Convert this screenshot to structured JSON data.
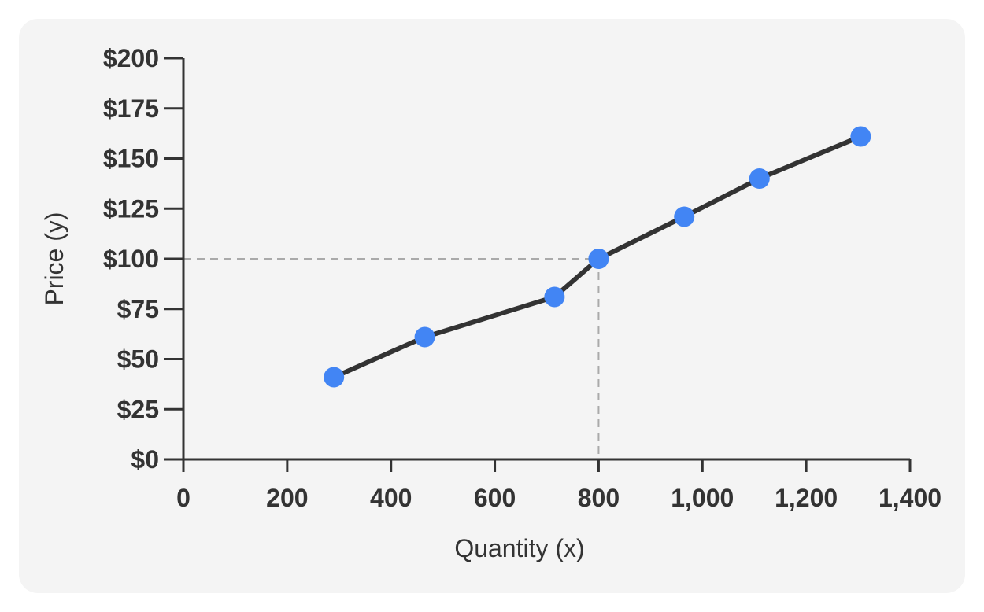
{
  "chart_data": {
    "type": "line",
    "xlabel": "Quantity (x)",
    "ylabel": "Price (y)",
    "xlim": [
      0,
      1400
    ],
    "ylim": [
      0,
      200
    ],
    "x_ticks": [
      0,
      200,
      400,
      600,
      800,
      1000,
      1200,
      1400
    ],
    "x_tick_labels": [
      "0",
      "200",
      "400",
      "600",
      "800",
      "1,000",
      "1,200",
      "1,400"
    ],
    "y_ticks": [
      0,
      25,
      50,
      75,
      100,
      125,
      150,
      175,
      200
    ],
    "y_tick_labels": [
      "$0",
      "$25",
      "$50",
      "$75",
      "$100",
      "$125",
      "$150",
      "$175",
      "$200"
    ],
    "series": [
      {
        "x": [
          290,
          465,
          715,
          800,
          965,
          1110,
          1305
        ],
        "y": [
          41,
          61,
          81,
          100,
          121,
          140,
          161
        ]
      }
    ],
    "reference_point": {
      "x": 800,
      "y": 100
    },
    "grid": false,
    "colors": {
      "line": "#333333",
      "marker": "#4285f4",
      "axis": "#333333",
      "guide": "#aaaaaa",
      "background": "#f4f4f4"
    }
  }
}
